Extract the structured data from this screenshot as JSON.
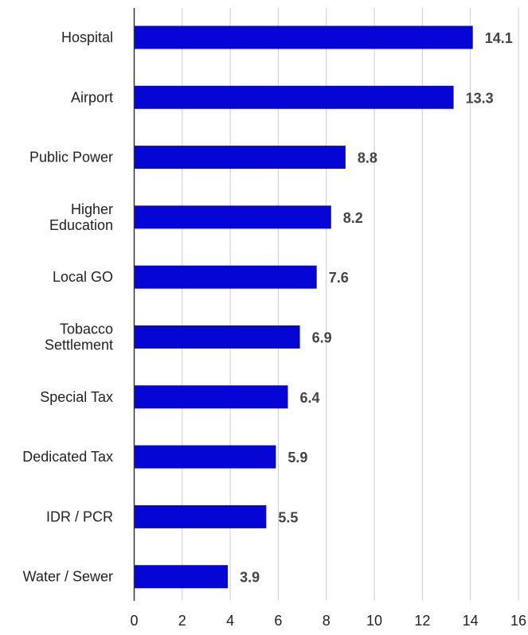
{
  "chart_data": {
    "type": "bar",
    "orientation": "horizontal",
    "title": "",
    "xlabel": "",
    "ylabel": "",
    "categories": [
      "Hospital",
      "Airport",
      "Public Power",
      "Higher Education",
      "Local GO",
      "Tobacco Settlement",
      "Special Tax",
      "Dedicated Tax",
      "IDR / PCR",
      "Water / Sewer"
    ],
    "category_lines": [
      [
        "Hospital"
      ],
      [
        "Airport"
      ],
      [
        "Public Power"
      ],
      [
        "Higher",
        "Education"
      ],
      [
        "Local GO"
      ],
      [
        "Tobacco",
        "Settlement"
      ],
      [
        "Special Tax"
      ],
      [
        "Dedicated Tax"
      ],
      [
        "IDR / PCR"
      ],
      [
        "Water / Sewer"
      ]
    ],
    "values": [
      14.1,
      13.3,
      8.8,
      8.2,
      7.6,
      6.9,
      6.4,
      5.9,
      5.5,
      3.9
    ],
    "value_labels": [
      "14.1",
      "13.3",
      "8.8",
      "8.2",
      "7.6",
      "6.9",
      "6.4",
      "5.9",
      "5.5",
      "3.9"
    ],
    "xlim": [
      0,
      16
    ],
    "xticks": [
      0,
      2,
      4,
      6,
      8,
      10,
      12,
      14,
      16
    ],
    "xtick_labels": [
      "0",
      "2",
      "4",
      "6",
      "8",
      "10",
      "12",
      "14",
      "16"
    ],
    "grid": "vertical",
    "legend": "none",
    "colors": {
      "bar": "#0505d6",
      "grid": "#cccccc",
      "axis": "#333333",
      "label": "#222222",
      "value": "#444444"
    }
  }
}
